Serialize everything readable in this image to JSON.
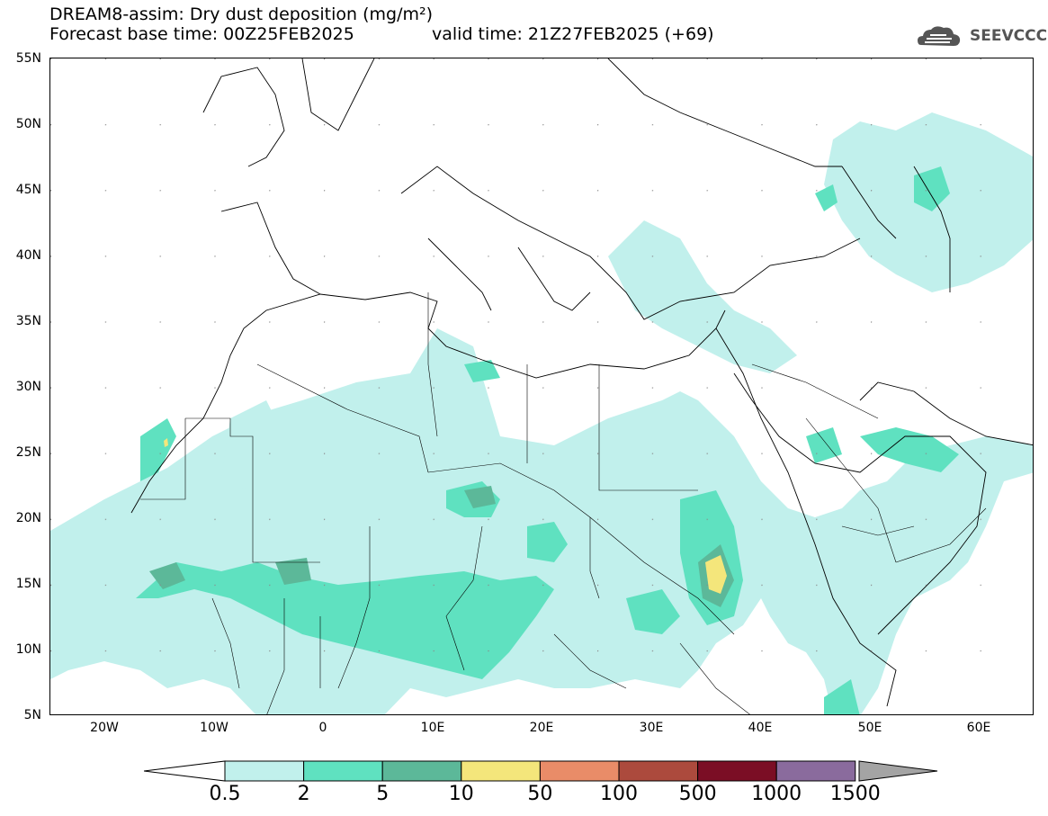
{
  "title": {
    "line1": "DREAM8-assim: Dry dust deposition (mg/m²)",
    "line2": "Forecast base time: 00Z25FEB2025",
    "valid": "valid time: 21Z27FEB2025 (+69)"
  },
  "logo": {
    "text": "SEEVCCC",
    "icon": "cloud-icon"
  },
  "map": {
    "region": "North Africa, Europe and Middle East",
    "lon_range": [
      -25,
      65
    ],
    "lat_range": [
      5,
      55
    ],
    "lat_labels": [
      "55N",
      "50N",
      "45N",
      "40N",
      "35N",
      "30N",
      "25N",
      "20N",
      "15N",
      "10N",
      "5N"
    ],
    "lon_labels": [
      "20W",
      "10W",
      "0",
      "10E",
      "20E",
      "30E",
      "40E",
      "50E",
      "60E"
    ]
  },
  "legend": {
    "labels": [
      "0.5",
      "2",
      "5",
      "10",
      "50",
      "100",
      "500",
      "1000",
      "1500"
    ],
    "colors": [
      "#c1f0ec",
      "#5fe1c0",
      "#5cb899",
      "#f4e67b",
      "#e98c68",
      "#ac4a3d",
      "#7b0e25",
      "#8a6b9d",
      "#a4a4a4"
    ],
    "under_color": "#ffffff"
  }
}
